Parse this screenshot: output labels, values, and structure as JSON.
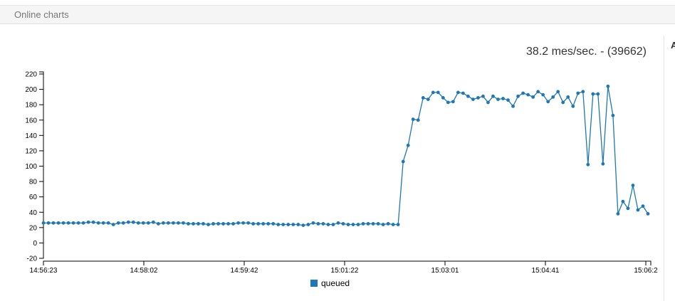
{
  "panel": {
    "title": "Online charts"
  },
  "rate_display": "38.2 mes/sec. - (39662)",
  "side_panel_letter": "A",
  "colors": {
    "series": "#1f77b4",
    "axis": "#000000"
  },
  "chart_data": {
    "type": "line",
    "title": "",
    "xlabel": "",
    "ylabel": "",
    "ylim": [
      -20,
      220
    ],
    "yticks": [
      -20,
      0,
      20,
      40,
      60,
      80,
      100,
      120,
      140,
      160,
      180,
      200,
      220
    ],
    "xtick_labels": [
      "14:56:23",
      "14:58:02",
      "14:59:42",
      "15:01:22",
      "15:03:01",
      "15:04:41",
      "15:06:2"
    ],
    "legend_position": "bottom-center",
    "series": [
      {
        "name": "queued",
        "values": [
          26,
          26,
          26,
          26,
          26,
          26,
          26,
          26,
          26,
          27,
          27,
          26,
          26,
          26,
          24,
          26,
          26,
          27,
          27,
          26,
          26,
          26,
          27,
          25,
          26,
          26,
          26,
          26,
          26,
          25,
          25,
          25,
          25,
          24,
          25,
          25,
          25,
          25,
          25,
          26,
          26,
          26,
          25,
          25,
          25,
          25,
          25,
          24,
          24,
          24,
          24,
          24,
          23,
          24,
          26,
          25,
          25,
          24,
          24,
          26,
          25,
          24,
          24,
          24,
          25,
          25,
          25,
          25,
          24,
          25,
          24,
          24,
          106,
          127,
          161,
          160,
          189,
          187,
          196,
          196,
          189,
          183,
          184,
          196,
          195,
          191,
          187,
          189,
          191,
          183,
          191,
          187,
          188,
          186,
          178,
          191,
          195,
          193,
          190,
          197,
          193,
          184,
          190,
          197,
          183,
          190,
          178,
          195,
          197,
          102,
          194,
          194,
          103,
          204,
          166,
          38,
          54,
          45,
          75,
          43,
          48,
          38
        ]
      }
    ]
  }
}
